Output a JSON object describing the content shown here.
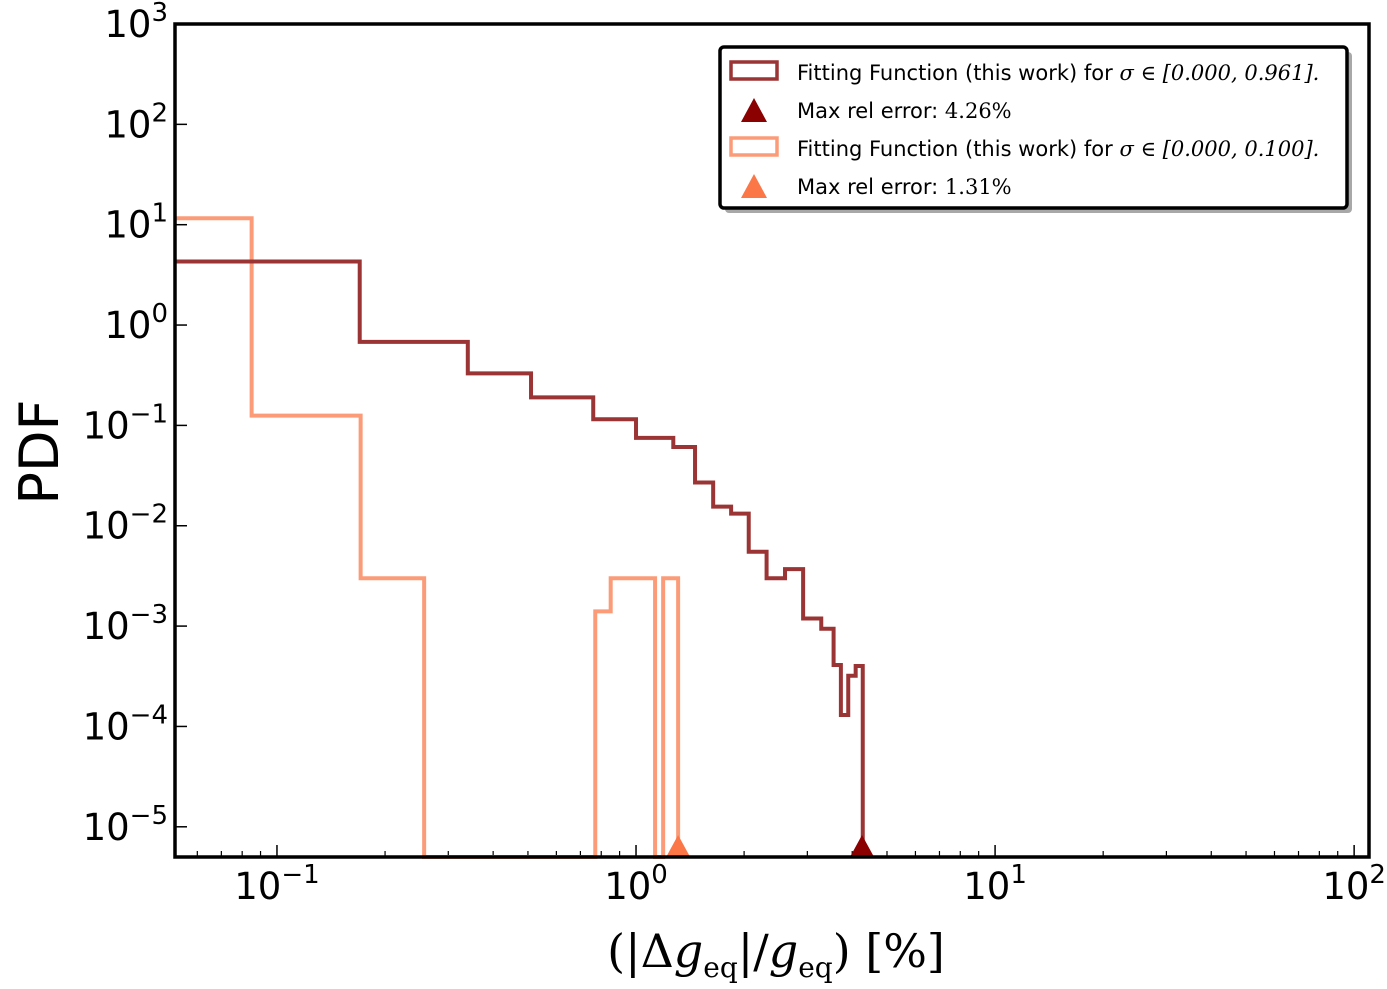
{
  "chart_data": {
    "type": "step-histogram",
    "xscale": "log",
    "yscale": "log",
    "xlim": [
      0.052,
      110
    ],
    "ylim": [
      5e-06,
      1000
    ],
    "xlabel": "(|Δg_eq|/g_eq) [%]",
    "xlabel_parts": {
      "open": "(|Δ",
      "g": "g",
      "sub": "eq",
      "mid": "|/",
      "close": ") [%]"
    },
    "ylabel": "PDF",
    "x_ticks": [
      {
        "base": "10",
        "exp": "−1",
        "value": 0.1
      },
      {
        "base": "10",
        "exp": "0",
        "value": 1
      },
      {
        "base": "10",
        "exp": "1",
        "value": 10
      },
      {
        "base": "10",
        "exp": "2",
        "value": 100
      }
    ],
    "y_ticks": [
      {
        "base": "10",
        "exp": "−5",
        "value": 1e-05
      },
      {
        "base": "10",
        "exp": "−4",
        "value": 0.0001
      },
      {
        "base": "10",
        "exp": "−3",
        "value": 0.001
      },
      {
        "base": "10",
        "exp": "−2",
        "value": 0.01
      },
      {
        "base": "10",
        "exp": "−1",
        "value": 0.1
      },
      {
        "base": "10",
        "exp": "0",
        "value": 1
      },
      {
        "base": "10",
        "exp": "1",
        "value": 10
      },
      {
        "base": "10",
        "exp": "2",
        "value": 100
      },
      {
        "base": "10",
        "exp": "3",
        "value": 1000
      }
    ],
    "legend_position": "top-right",
    "series": [
      {
        "color": "#9b3434",
        "marker_color": "#8b0000",
        "legend_prefix": "Fitting Function (this work) for ",
        "legend_math": "σ ∈ [0.000, 0.961].",
        "marker_prefix": "Max rel error: ",
        "marker_math": "4.26%",
        "max_error": 4.26,
        "bin_edges": [
          0.052,
          0.17,
          0.34,
          0.51,
          0.76,
          1.0,
          1.27,
          1.46,
          1.64,
          1.84,
          2.06,
          2.31,
          2.6,
          2.92,
          3.28,
          3.55,
          3.72,
          3.9,
          4.09,
          4.28
        ],
        "values": [
          4.3,
          0.68,
          0.33,
          0.19,
          0.115,
          0.075,
          0.061,
          0.027,
          0.0155,
          0.0132,
          0.0055,
          0.003,
          0.0037,
          0.00119,
          0.00094,
          0.00041,
          0.00013,
          0.00032,
          0.0004
        ]
      },
      {
        "color": "#fc9b78",
        "marker_color": "#fc7748",
        "legend_prefix": "Fitting Function (this work) for ",
        "legend_math": "σ ∈ [0.000, 0.100].",
        "marker_prefix": "Max rel error: ",
        "marker_math": "1.31%",
        "max_error": 1.31,
        "bin_edges": [
          0.052,
          0.085,
          0.171,
          0.257,
          0.77,
          0.85,
          1.13,
          1.19,
          1.31
        ],
        "values": [
          11.6,
          0.125,
          0.003,
          1e-07,
          0.0014,
          0.003,
          1e-07,
          0.003
        ]
      }
    ]
  }
}
